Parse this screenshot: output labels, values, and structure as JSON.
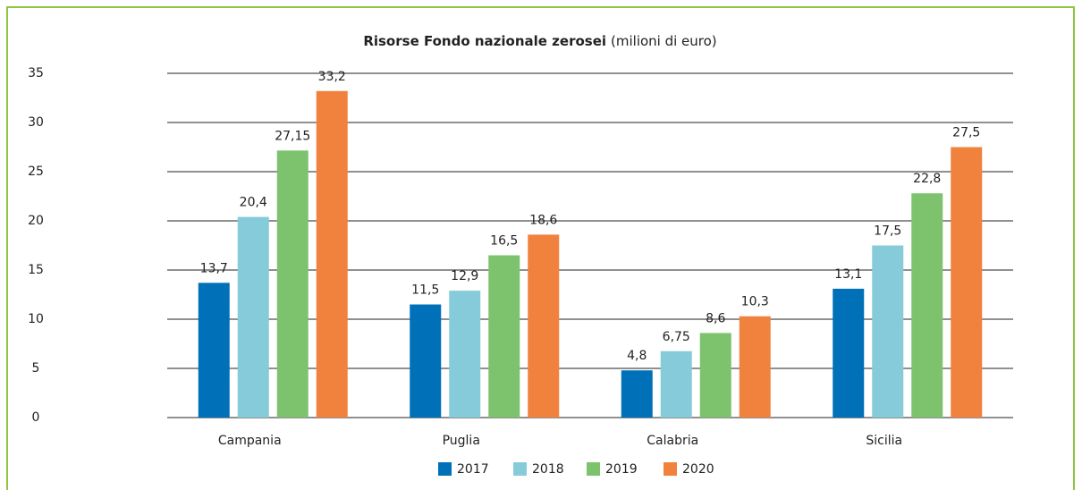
{
  "chart_data": {
    "type": "bar",
    "title": "Risorse Fondo nazionale zerosei",
    "subtitle": "(milioni di euro)",
    "categories": [
      "Campania",
      "Puglia",
      "Calabria",
      "Sicilia"
    ],
    "series": [
      {
        "name": "2017",
        "color": "#0070b8",
        "values": [
          13.7,
          11.5,
          4.8,
          13.1
        ],
        "value_labels": [
          "13,7",
          "11,5",
          "4,8",
          "13,1"
        ]
      },
      {
        "name": "2018",
        "color": "#86cbd9",
        "values": [
          20.4,
          12.9,
          6.75,
          17.5
        ],
        "value_labels": [
          "20,4",
          "12,9",
          "6,75",
          "17,5"
        ]
      },
      {
        "name": "2019",
        "color": "#7dc36e",
        "values": [
          27.15,
          16.5,
          8.6,
          22.8
        ],
        "value_labels": [
          "27,15",
          "16,5",
          "8,6",
          "22,8"
        ]
      },
      {
        "name": "2020",
        "color": "#f0823e",
        "values": [
          33.2,
          18.6,
          10.3,
          27.5
        ],
        "value_labels": [
          "33,2",
          "18,6",
          "10,3",
          "27,5"
        ]
      }
    ],
    "ylim": [
      0,
      35
    ],
    "yticks": [
      0,
      5,
      10,
      15,
      20,
      25,
      30,
      35
    ],
    "grid": true,
    "legend": "bottom"
  }
}
